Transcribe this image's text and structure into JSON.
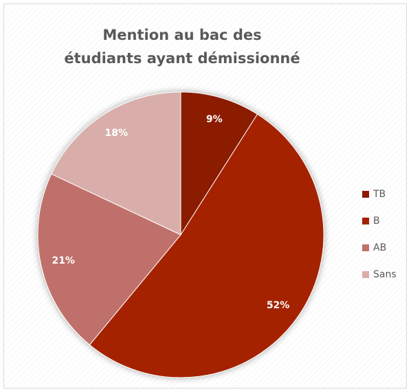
{
  "chart_data": {
    "type": "pie",
    "title": "Mention au bac des étudiants ayant démissionné",
    "categories": [
      "TB",
      "B",
      "AB",
      "Sans"
    ],
    "values": [
      9,
      52,
      21,
      18
    ],
    "value_labels": [
      "9%",
      "52%",
      "21%",
      "18%"
    ],
    "colors": [
      "#8b1a00",
      "#a52000",
      "#c0706a",
      "#d9aeaa"
    ],
    "legend": "right"
  }
}
